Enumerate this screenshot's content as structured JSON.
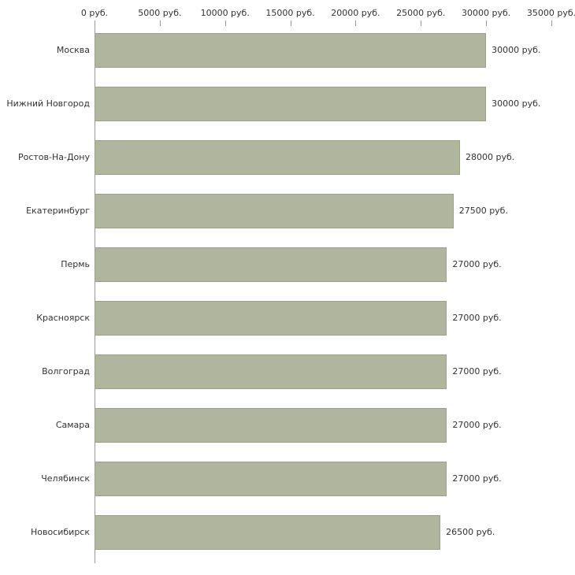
{
  "chart_data": {
    "type": "bar",
    "orientation": "horizontal",
    "title": "",
    "xlabel": "",
    "ylabel": "",
    "categories": [
      "Москва",
      "Нижний Новгород",
      "Ростов-На-Дону",
      "Екатеринбург",
      "Пермь",
      "Красноярск",
      "Волгоград",
      "Самара",
      "Челябинск",
      "Новосибирск"
    ],
    "values": [
      30000,
      30000,
      28000,
      27500,
      27000,
      27000,
      27000,
      27000,
      27000,
      26500
    ],
    "value_labels": [
      "30000 руб.",
      "30000 руб.",
      "28000 руб.",
      "27500 руб.",
      "27000 руб.",
      "27000 руб.",
      "27000 руб.",
      "27000 руб.",
      "27000 руб.",
      "26500 руб."
    ],
    "x_ticks": [
      0,
      5000,
      10000,
      15000,
      20000,
      25000,
      30000,
      35000
    ],
    "x_tick_labels": [
      "0 руб.",
      "5000 руб.",
      "10000 руб.",
      "15000 руб.",
      "20000 руб.",
      "25000 руб.",
      "30000 руб.",
      "35000 руб."
    ],
    "xlim": [
      0,
      35000
    ],
    "grid": false,
    "legend": "none",
    "colors": {
      "bar_fill": "#b0b59e",
      "bar_border": "#9aa188",
      "axis": "#999999",
      "text": "#333333",
      "background": "#ffffff"
    }
  }
}
